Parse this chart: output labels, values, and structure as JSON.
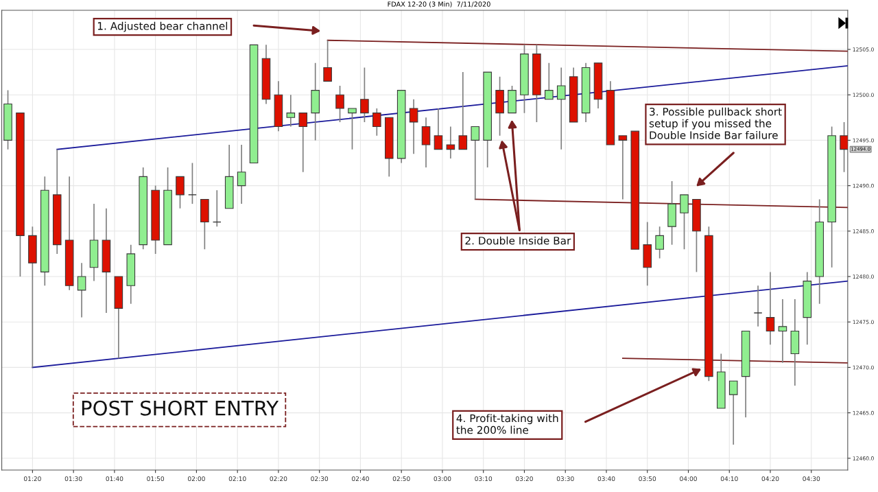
{
  "chart_data": {
    "type": "candlestick",
    "title": "FDAX 12-20 (3 Min)  7/11/2020",
    "x": [
      1.2333,
      1.2833,
      1.3333,
      1.3833,
      1.4333,
      1.4833,
      1.5333,
      1.5833,
      1.6333,
      1.6833,
      1.7333,
      1.7833,
      1.8333,
      1.8833,
      1.9333,
      1.9833,
      2.0333,
      2.0833,
      2.1333,
      2.1833,
      2.2333,
      2.2833,
      2.3333,
      2.3833,
      2.4333,
      2.4833,
      2.5333,
      2.5833,
      2.6333,
      2.6833,
      2.7333,
      2.7833,
      2.8333,
      2.8833,
      2.9333,
      2.9833,
      3.0333,
      3.0833,
      3.1333,
      3.1833,
      3.2333,
      3.2833,
      3.3333,
      3.3833,
      3.4333,
      3.4833,
      3.5333,
      3.5833,
      3.6333,
      3.6833,
      3.7333,
      3.7833,
      3.8333,
      3.8833,
      3.9333,
      3.9833,
      4.0333,
      4.0833,
      4.1333,
      4.1833,
      4.2333,
      4.2833,
      4.3333,
      4.3833,
      4.4333,
      4.4833,
      4.5333,
      4.5833,
      4.6333
    ],
    "ohlc": [
      [
        12495,
        12500.5,
        12494,
        12499
      ],
      [
        12498,
        12498,
        12480,
        12484.5
      ],
      [
        12484.5,
        12485.5,
        12470,
        12481.5
      ],
      [
        12480.5,
        12491,
        12479,
        12489.5
      ],
      [
        12489,
        12494,
        12482.5,
        12483.5
      ],
      [
        12484,
        12491,
        12478.5,
        12479
      ],
      [
        12478.5,
        12481.5,
        12475.5,
        12480
      ],
      [
        12481,
        12488,
        12479.5,
        12484
      ],
      [
        12484,
        12487.5,
        12476,
        12480.5
      ],
      [
        12480,
        12480,
        12471,
        12476.5
      ],
      [
        12479,
        12483.5,
        12477,
        12482.5
      ],
      [
        12483.5,
        12492,
        12483,
        12491
      ],
      [
        12489.5,
        12490,
        12482.5,
        12484
      ],
      [
        12483.5,
        12492,
        12483.5,
        12489.5
      ],
      [
        12491,
        12491,
        12487.5,
        12489
      ],
      [
        12489,
        12492.5,
        12488,
        12489
      ],
      [
        12488.5,
        12488.5,
        12483,
        12486
      ],
      [
        12486,
        12489.5,
        12485.5,
        12486
      ],
      [
        12487.5,
        12494.5,
        12487.5,
        12491
      ],
      [
        12490,
        12494.5,
        12488,
        12491.5
      ],
      [
        12492.5,
        12505.5,
        12492.5,
        12505.5
      ],
      [
        12504,
        12505.5,
        12499,
        12499.5
      ],
      [
        12500,
        12501.5,
        12496,
        12496.5
      ],
      [
        12497.5,
        12500,
        12496.5,
        12498
      ],
      [
        12498,
        12498,
        12491.5,
        12496.5
      ],
      [
        12498,
        12503.5,
        12495,
        12500.5
      ],
      [
        12503,
        12506,
        12501.5,
        12501.5
      ],
      [
        12500,
        12501,
        12497,
        12498.5
      ],
      [
        12498,
        12498.5,
        12494,
        12498.5
      ],
      [
        12499.5,
        12503,
        12497,
        12498
      ],
      [
        12498,
        12498.5,
        12495.5,
        12496.5
      ],
      [
        12497.5,
        12497.5,
        12491,
        12493
      ],
      [
        12493,
        12500.5,
        12492.5,
        12500.5
      ],
      [
        12498.5,
        12499.5,
        12493.5,
        12497
      ],
      [
        12496.5,
        12497.5,
        12492,
        12494.5
      ],
      [
        12495.5,
        12498.5,
        12494,
        12494
      ],
      [
        12494.5,
        12496.5,
        12493,
        12494
      ],
      [
        12495.5,
        12502.5,
        12494,
        12494
      ],
      [
        12495,
        12496.5,
        12488.5,
        12496.5
      ],
      [
        12495,
        12502.5,
        12492,
        12502.5
      ],
      [
        12500.5,
        12502,
        12495.5,
        12498
      ],
      [
        12498,
        12501,
        12498,
        12500.5
      ],
      [
        12500,
        12505.5,
        12498,
        12504.5
      ],
      [
        12504.5,
        12505.5,
        12497,
        12500
      ],
      [
        12499.5,
        12503.5,
        12499.5,
        12500.5
      ],
      [
        12499.5,
        12503,
        12494,
        12501
      ],
      [
        12502,
        12503,
        12497,
        12497
      ],
      [
        12498,
        12503.5,
        12497,
        12503
      ],
      [
        12503.5,
        12503.5,
        12498.5,
        12499.5
      ],
      [
        12500.5,
        12501.5,
        12494.5,
        12494.5
      ],
      [
        12495.5,
        12495.5,
        12488.5,
        12495
      ],
      [
        12496,
        12496,
        12483,
        12483
      ],
      [
        12483.5,
        12486,
        12479,
        12481
      ],
      [
        12483,
        12485.5,
        12482,
        12484.5
      ],
      [
        12485.5,
        12490.5,
        12483.5,
        12488
      ],
      [
        12487,
        12489,
        12483,
        12489
      ],
      [
        12488.5,
        12488.5,
        12480.5,
        12485
      ],
      [
        12484.5,
        12485.5,
        12468.5,
        12469
      ],
      [
        12465.5,
        12471.5,
        12465.5,
        12469.5
      ],
      [
        12467,
        12468.5,
        12461.5,
        12468.5
      ],
      [
        12469,
        12474,
        12464.5,
        12474
      ],
      [
        12476,
        12479,
        12474.5,
        12476
      ],
      [
        12475.5,
        12480.5,
        12472.5,
        12474
      ],
      [
        12474,
        12477.5,
        12470.5,
        12474.5
      ],
      [
        12471.5,
        12477.5,
        12468,
        12474
      ],
      [
        12475.5,
        12480.5,
        12472.5,
        12479.5
      ],
      [
        12480,
        12488.5,
        12477,
        12486
      ],
      [
        12486,
        12496.5,
        12481,
        12495.5
      ],
      [
        12495.5,
        12497,
        12491.5,
        12494
      ]
    ],
    "colors": [
      "#90ee90",
      "#dd1100",
      "#dd1100",
      "#90ee90",
      "#dd1100",
      "#dd1100",
      "#90ee90",
      "#90ee90",
      "#dd1100",
      "#dd1100",
      "#90ee90",
      "#90ee90",
      "#dd1100",
      "#90ee90",
      "#dd1100",
      "#3a3a3a",
      "#dd1100",
      "#3a3a3a",
      "#90ee90",
      "#90ee90",
      "#90ee90",
      "#dd1100",
      "#dd1100",
      "#90ee90",
      "#dd1100",
      "#90ee90",
      "#dd1100",
      "#dd1100",
      "#90ee90",
      "#dd1100",
      "#dd1100",
      "#dd1100",
      "#90ee90",
      "#dd1100",
      "#dd1100",
      "#dd1100",
      "#dd1100",
      "#dd1100",
      "#90ee90",
      "#90ee90",
      "#dd1100",
      "#90ee90",
      "#90ee90",
      "#dd1100",
      "#90ee90",
      "#90ee90",
      "#dd1100",
      "#90ee90",
      "#dd1100",
      "#dd1100",
      "#dd1100",
      "#dd1100",
      "#dd1100",
      "#90ee90",
      "#90ee90",
      "#90ee90",
      "#dd1100",
      "#dd1100",
      "#90ee90",
      "#90ee90",
      "#90ee90",
      "#3a3a3a",
      "#dd1100",
      "#90ee90",
      "#90ee90",
      "#90ee90",
      "#90ee90",
      "#90ee90",
      "#dd1100"
    ],
    "series": [
      {
        "type": "line",
        "color": "#1a1a9a",
        "x": [
          1.4333,
          4.648
        ],
        "values": [
          12494,
          12503.2
        ]
      },
      {
        "type": "line",
        "color": "#1a1a9a",
        "x": [
          1.3333,
          4.648
        ],
        "values": [
          12470,
          12479.5
        ]
      },
      {
        "type": "line",
        "color": "#7a1f1f",
        "x": [
          2.5333,
          4.648
        ],
        "values": [
          12506,
          12504.8
        ]
      },
      {
        "type": "line",
        "color": "#7a1f1f",
        "x": [
          3.1333,
          4.648
        ],
        "values": [
          12488.5,
          12487.6
        ]
      },
      {
        "type": "line",
        "color": "#7a1f1f",
        "x": [
          3.7333,
          4.648
        ],
        "values": [
          12471,
          12470.5
        ]
      }
    ],
    "xlim": [
      1.2083,
      4.648
    ],
    "xticks": [
      {
        "value": 1.3333,
        "label": "01:20"
      },
      {
        "value": 1.5,
        "label": "01:30"
      },
      {
        "value": 1.6667,
        "label": "01:40"
      },
      {
        "value": 1.8333,
        "label": "01:50"
      },
      {
        "value": 2.0,
        "label": "02:00"
      },
      {
        "value": 2.1667,
        "label": "02:10"
      },
      {
        "value": 2.3333,
        "label": "02:20"
      },
      {
        "value": 2.5,
        "label": "02:30"
      },
      {
        "value": 2.6667,
        "label": "02:40"
      },
      {
        "value": 2.8333,
        "label": "02:50"
      },
      {
        "value": 3.0,
        "label": "03:00"
      },
      {
        "value": 3.1667,
        "label": "03:10"
      },
      {
        "value": 3.3333,
        "label": "03:20"
      },
      {
        "value": 3.5,
        "label": "03:30"
      },
      {
        "value": 3.6667,
        "label": "03:40"
      },
      {
        "value": 3.8333,
        "label": "03:50"
      },
      {
        "value": 4.0,
        "label": "04:00"
      },
      {
        "value": 4.1667,
        "label": "04:10"
      },
      {
        "value": 4.3333,
        "label": "04:20"
      },
      {
        "value": 4.5,
        "label": "04:30"
      }
    ],
    "ylim": [
      12458.7,
      12509.3
    ],
    "yticks": [
      {
        "value": 12460,
        "label": "12460.0"
      },
      {
        "value": 12465,
        "label": "12465.0"
      },
      {
        "value": 12470,
        "label": "12470.0"
      },
      {
        "value": 12475,
        "label": "12475.0"
      },
      {
        "value": 12480,
        "label": "12480.0"
      },
      {
        "value": 12485,
        "label": "12485.0"
      },
      {
        "value": 12490,
        "label": "12490.0"
      },
      {
        "value": 12495,
        "label": "12495.0"
      },
      {
        "value": 12500,
        "label": "12500.0"
      },
      {
        "value": 12505,
        "label": "12505.0"
      }
    ],
    "grid": true,
    "annotations": [
      "1. Adjusted bear channel",
      "2. Double Inside Bar",
      "3. Possible pullback short\nsetup if you missed the\nDouble Inside Bar failure",
      "4. Profit-taking with\nthe 200% line",
      "POST SHORT ENTRY",
      {
        "text": "12494.0",
        "x": 4.6333,
        "y": 12494
      }
    ]
  }
}
